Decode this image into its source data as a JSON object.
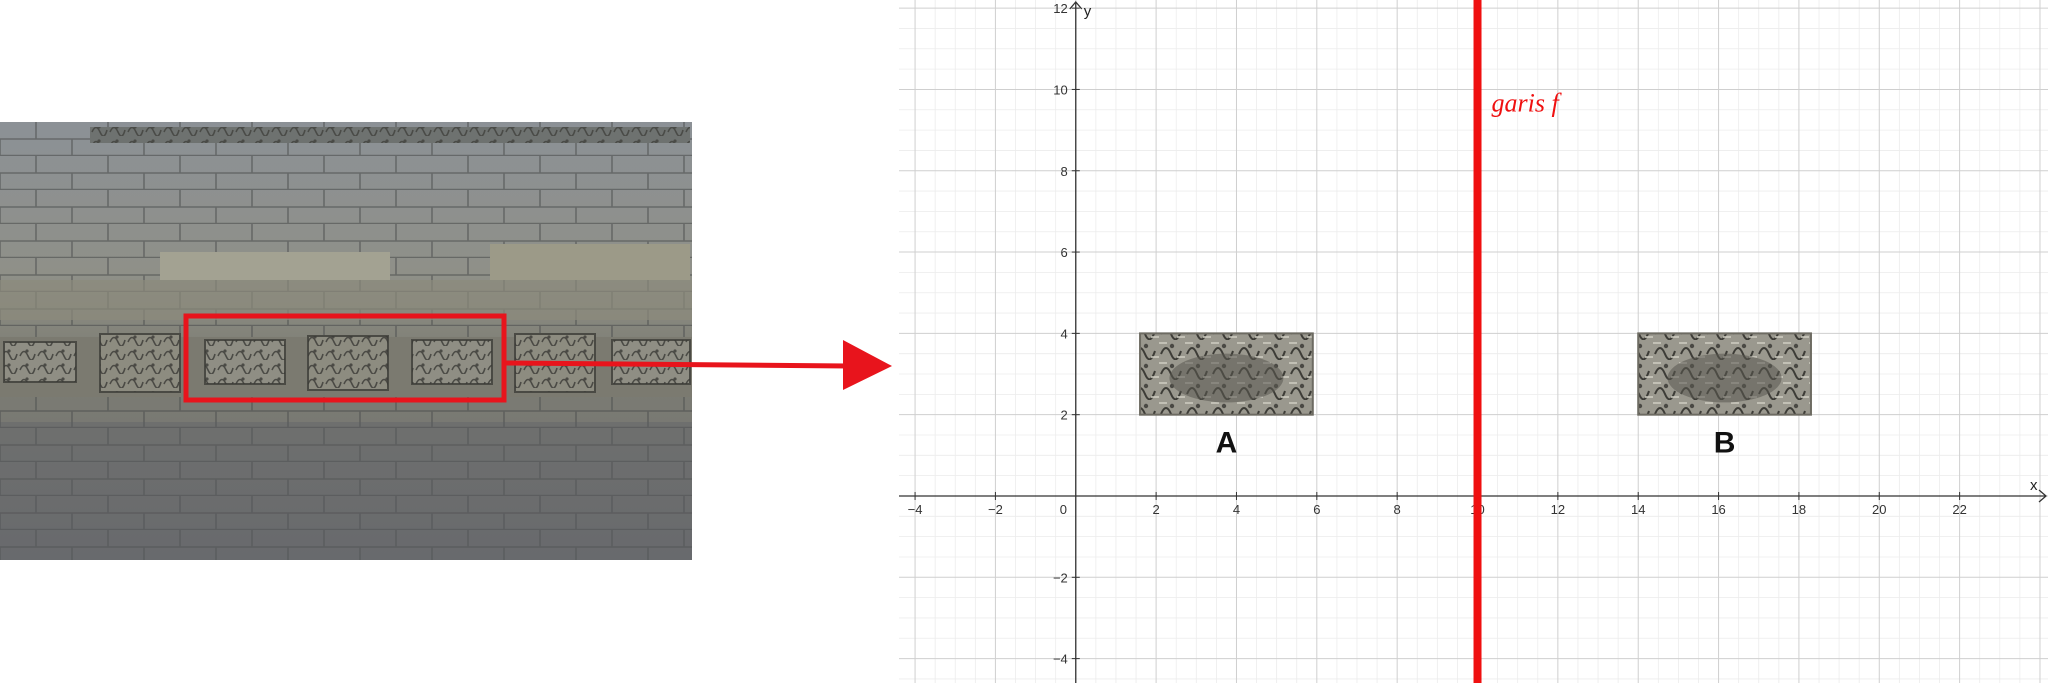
{
  "photo": {
    "name": "temple-relief-wall-photo",
    "highlight_color": "#e8141c"
  },
  "arrow": {
    "color": "#e8141c"
  },
  "plot": {
    "x_axis_name": "x",
    "y_axis_name": "y",
    "x_range": [
      -4.4,
      24.2
    ],
    "y_range": [
      -4.6,
      12.2
    ],
    "x_ticks": [
      -4,
      -2,
      0,
      2,
      4,
      6,
      8,
      10,
      12,
      14,
      16,
      18,
      20,
      22
    ],
    "y_ticks": [
      -4,
      -2,
      2,
      4,
      6,
      8,
      10,
      12
    ],
    "grid_color_major": "#cfcfcf",
    "grid_color_minor": "#ececec",
    "line_f": {
      "label": "garis f",
      "x": 10,
      "color": "#ef1010"
    },
    "shape_a": {
      "label": "A",
      "x_min": 1.6,
      "x_max": 5.9,
      "y_min": 2.0,
      "y_max": 4.0
    },
    "shape_b": {
      "label": "B",
      "x_min": 14.0,
      "x_max": 18.3,
      "y_min": 2.0,
      "y_max": 4.0
    }
  }
}
